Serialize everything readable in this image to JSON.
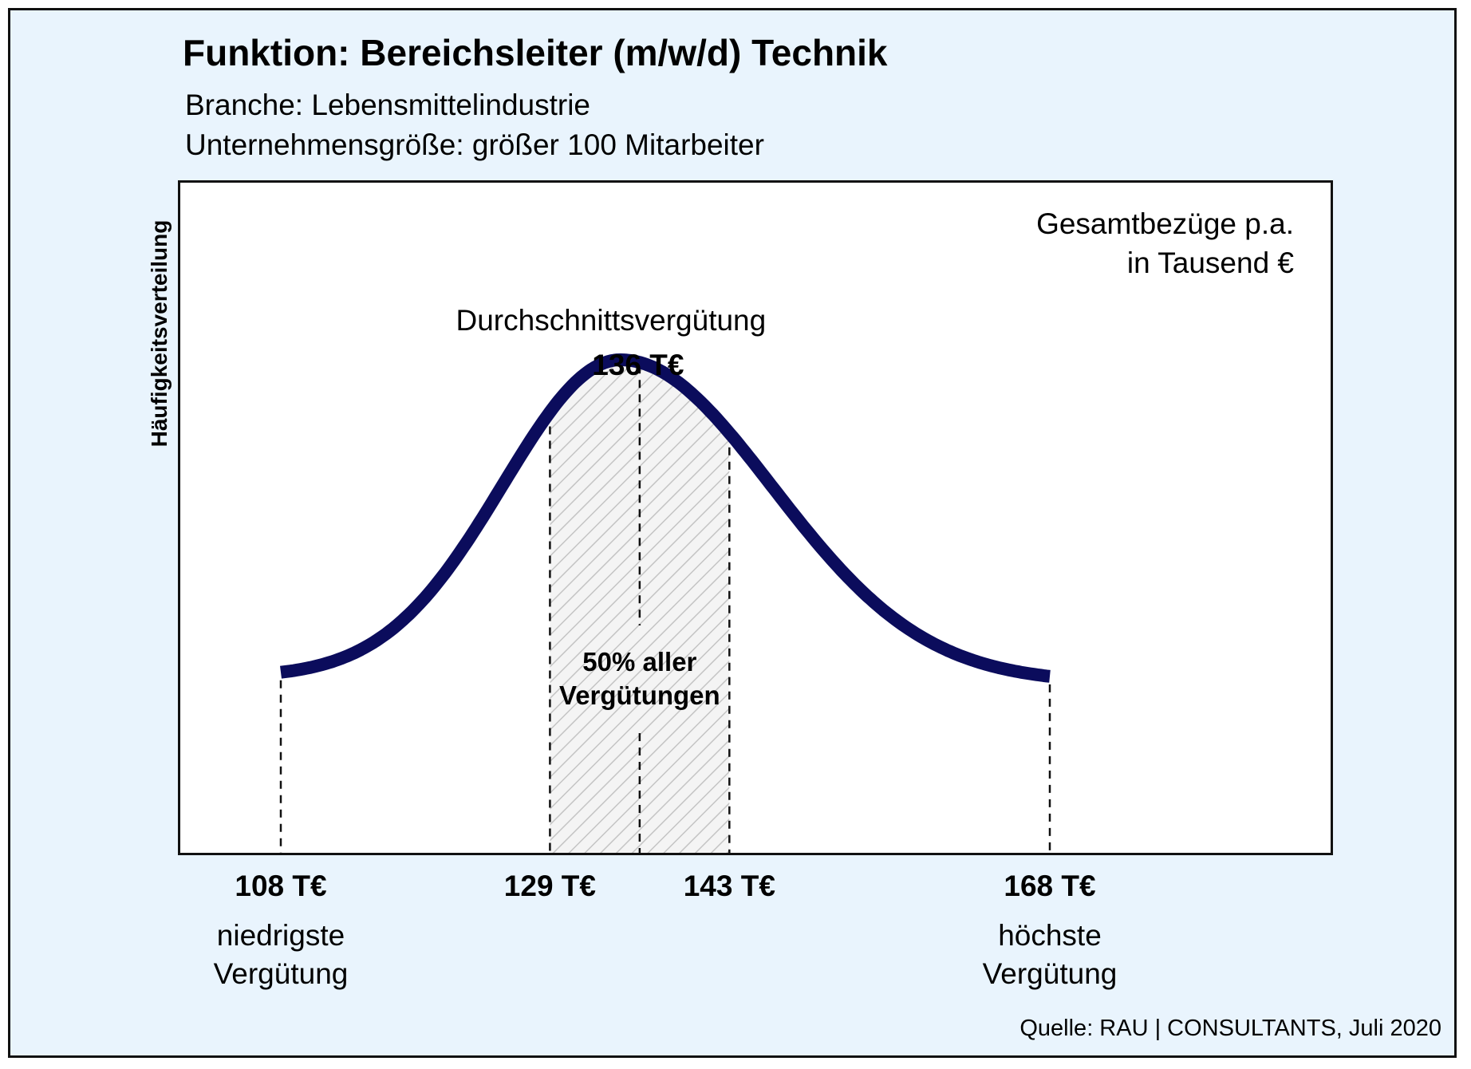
{
  "header": {
    "title": "Funktion: Bereichsleiter (m/w/d) Technik",
    "subtitle_line1": "Branche: Lebensmittelindustrie",
    "subtitle_line2": "Unternehmensgröße: größer 100 Mitarbeiter"
  },
  "footer": {
    "source": "Quelle: RAU | CONSULTANTS, Juli 2020"
  },
  "colors": {
    "background": "#e9f4fd",
    "curve": "#0b0c5c",
    "hatch": "#bfbfbf"
  },
  "chart_data": {
    "type": "area",
    "title": "Funktion: Bereichsleiter (m/w/d) Technik",
    "ylabel": "Häufigkeitsverteilung",
    "unit_line1": "Gesamtbezüge p.a.",
    "unit_line2": "in Tausend €",
    "curve": {
      "shape": "right-skewed bell curve",
      "x_start": 108,
      "x_end": 168,
      "peak_x": 134.5
    },
    "ticks": [
      {
        "value": 108,
        "label": "108 T€",
        "desc_line1": "niedrigste",
        "desc_line2": "Vergütung"
      },
      {
        "value": 129,
        "label": "129 T€",
        "desc_line1": "",
        "desc_line2": ""
      },
      {
        "value": 143,
        "label": "143 T€",
        "desc_line1": "",
        "desc_line2": ""
      },
      {
        "value": 168,
        "label": "168 T€",
        "desc_line1": "höchste",
        "desc_line2": "Vergütung"
      }
    ],
    "min": 108,
    "q1": 129,
    "q3": 143,
    "max": 168,
    "average": {
      "value": 136,
      "label": "Durchschnittsvergütung",
      "value_label": "136 T€"
    },
    "shaded_region": {
      "from": 129,
      "to": 143,
      "label_line1": "50% aller",
      "label_line2": "Vergütungen"
    }
  }
}
